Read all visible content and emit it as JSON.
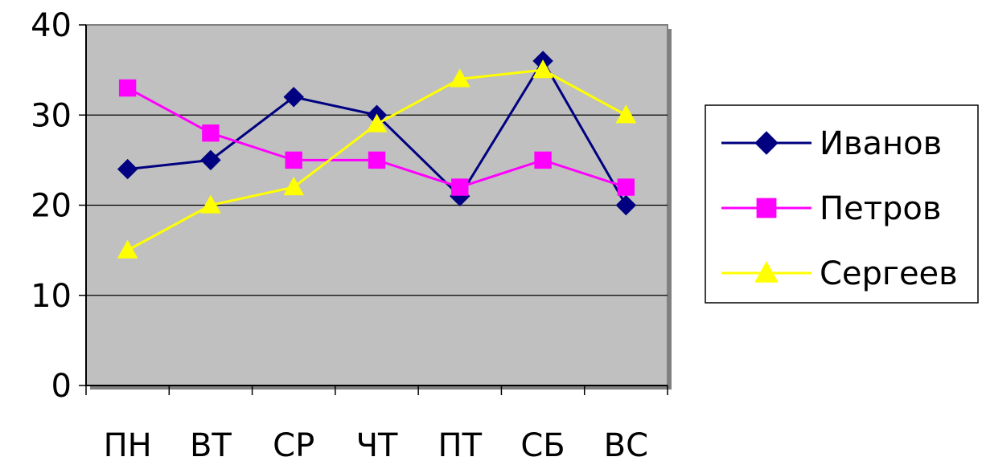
{
  "chart_data": {
    "type": "line",
    "categories": [
      "ПН",
      "ВТ",
      "СР",
      "ЧТ",
      "ПТ",
      "СБ",
      "ВС"
    ],
    "series": [
      {
        "name": "Иванов",
        "values": [
          24,
          25,
          32,
          30,
          21,
          36,
          20
        ],
        "color": "#000080",
        "marker": "diamond"
      },
      {
        "name": "Петров",
        "values": [
          33,
          28,
          25,
          25,
          22,
          25,
          22
        ],
        "color": "#ff00ff",
        "marker": "square"
      },
      {
        "name": "Сергеев",
        "values": [
          15,
          20,
          22,
          29,
          34,
          35,
          30
        ],
        "color": "#ffff00",
        "marker": "triangle"
      }
    ],
    "yticks": [
      "0",
      "10",
      "20",
      "30",
      "40"
    ],
    "ylim": [
      0,
      40
    ],
    "grid": true,
    "plot_background": "#c0c0c0",
    "legend_position": "right"
  }
}
